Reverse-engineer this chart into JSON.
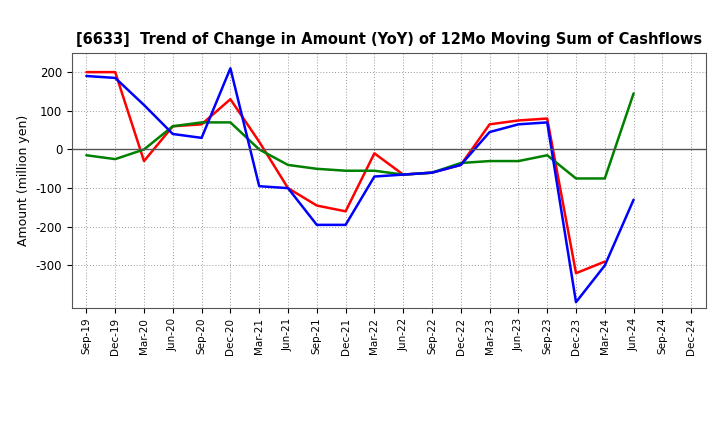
{
  "title": "[6633]  Trend of Change in Amount (YoY) of 12Mo Moving Sum of Cashflows",
  "ylabel": "Amount (million yen)",
  "x_labels": [
    "Sep-19",
    "Dec-19",
    "Mar-20",
    "Jun-20",
    "Sep-20",
    "Dec-20",
    "Mar-21",
    "Jun-21",
    "Sep-21",
    "Dec-21",
    "Mar-22",
    "Jun-22",
    "Sep-22",
    "Dec-22",
    "Mar-23",
    "Jun-23",
    "Sep-23",
    "Dec-23",
    "Mar-24",
    "Jun-24",
    "Sep-24",
    "Dec-24"
  ],
  "operating": [
    200,
    200,
    -30,
    60,
    65,
    130,
    20,
    -100,
    -145,
    -160,
    -10,
    -65,
    -60,
    -40,
    65,
    75,
    80,
    -320,
    -290,
    null,
    null,
    null
  ],
  "investing": [
    -15,
    -25,
    0,
    60,
    70,
    70,
    0,
    -40,
    -50,
    -55,
    -55,
    -65,
    -60,
    -35,
    -30,
    -30,
    -15,
    -75,
    -75,
    145,
    null,
    null
  ],
  "free": [
    190,
    185,
    115,
    40,
    30,
    210,
    -95,
    -100,
    -195,
    -195,
    -70,
    -65,
    -60,
    -40,
    45,
    65,
    70,
    -395,
    -300,
    -130,
    null,
    null
  ],
  "operating_color": "#ff0000",
  "investing_color": "#008000",
  "free_color": "#0000ff",
  "ylim": [
    -410,
    250
  ],
  "yticks": [
    -300,
    -200,
    -100,
    0,
    100,
    200
  ],
  "background_color": "#ffffff",
  "grid_color": "#999999"
}
